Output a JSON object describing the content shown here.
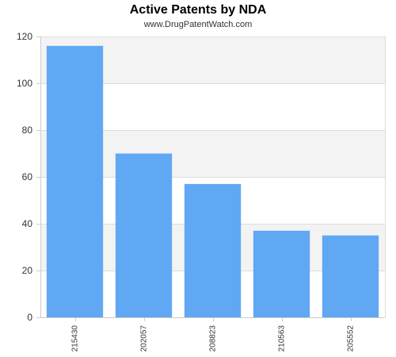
{
  "chart_data": {
    "type": "bar",
    "title": "Active Patents by NDA",
    "subtitle": "www.DrugPatentWatch.com",
    "xlabel": "",
    "ylabel": "",
    "categories": [
      "215430",
      "202057",
      "208823",
      "210563",
      "205552"
    ],
    "values": [
      116,
      70,
      57,
      37,
      35
    ],
    "ylim": [
      0,
      120
    ],
    "yticks": [
      0,
      20,
      40,
      60,
      80,
      100,
      120
    ],
    "grid": true,
    "bar_color": "#60a8f4",
    "band_color": "#f3f3f3",
    "grid_color": "#dddddd"
  }
}
